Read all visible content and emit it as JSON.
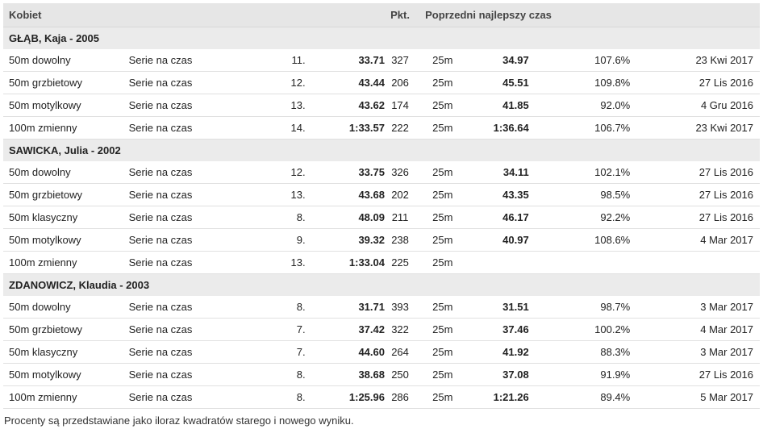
{
  "header": {
    "category": "Kobiet",
    "points_label": "Pkt.",
    "prev_best_label": "Poprzedni najlepszy czas"
  },
  "athletes": [
    {
      "name": "GŁĄB, Kaja - 2005",
      "events": [
        {
          "event": "50m dowolny",
          "round": "Serie na czas",
          "place": "11.",
          "time": "33.71",
          "points": "327",
          "course": "25m",
          "prev_time": "34.97",
          "pct": "107.6%",
          "date": "23 Kwi 2017"
        },
        {
          "event": "50m grzbietowy",
          "round": "Serie na czas",
          "place": "12.",
          "time": "43.44",
          "points": "206",
          "course": "25m",
          "prev_time": "45.51",
          "pct": "109.8%",
          "date": "27 Lis 2016"
        },
        {
          "event": "50m motylkowy",
          "round": "Serie na czas",
          "place": "13.",
          "time": "43.62",
          "points": "174",
          "course": "25m",
          "prev_time": "41.85",
          "pct": "92.0%",
          "date": "4 Gru 2016"
        },
        {
          "event": "100m zmienny",
          "round": "Serie na czas",
          "place": "14.",
          "time": "1:33.57",
          "points": "222",
          "course": "25m",
          "prev_time": "1:36.64",
          "pct": "106.7%",
          "date": "23 Kwi 2017"
        }
      ]
    },
    {
      "name": "SAWICKA, Julia - 2002",
      "events": [
        {
          "event": "50m dowolny",
          "round": "Serie na czas",
          "place": "12.",
          "time": "33.75",
          "points": "326",
          "course": "25m",
          "prev_time": "34.11",
          "pct": "102.1%",
          "date": "27 Lis 2016"
        },
        {
          "event": "50m grzbietowy",
          "round": "Serie na czas",
          "place": "13.",
          "time": "43.68",
          "points": "202",
          "course": "25m",
          "prev_time": "43.35",
          "pct": "98.5%",
          "date": "27 Lis 2016"
        },
        {
          "event": "50m klasyczny",
          "round": "Serie na czas",
          "place": "8.",
          "time": "48.09",
          "points": "211",
          "course": "25m",
          "prev_time": "46.17",
          "pct": "92.2%",
          "date": "27 Lis 2016"
        },
        {
          "event": "50m motylkowy",
          "round": "Serie na czas",
          "place": "9.",
          "time": "39.32",
          "points": "238",
          "course": "25m",
          "prev_time": "40.97",
          "pct": "108.6%",
          "date": "4 Mar 2017"
        },
        {
          "event": "100m zmienny",
          "round": "Serie na czas",
          "place": "13.",
          "time": "1:33.04",
          "points": "225",
          "course": "25m",
          "prev_time": "",
          "pct": "",
          "date": ""
        }
      ]
    },
    {
      "name": "ZDANOWICZ, Klaudia - 2003",
      "events": [
        {
          "event": "50m dowolny",
          "round": "Serie na czas",
          "place": "8.",
          "time": "31.71",
          "points": "393",
          "course": "25m",
          "prev_time": "31.51",
          "pct": "98.7%",
          "date": "3 Mar 2017"
        },
        {
          "event": "50m grzbietowy",
          "round": "Serie na czas",
          "place": "7.",
          "time": "37.42",
          "points": "322",
          "course": "25m",
          "prev_time": "37.46",
          "pct": "100.2%",
          "date": "4 Mar 2017"
        },
        {
          "event": "50m klasyczny",
          "round": "Serie na czas",
          "place": "7.",
          "time": "44.60",
          "points": "264",
          "course": "25m",
          "prev_time": "41.92",
          "pct": "88.3%",
          "date": "3 Mar 2017"
        },
        {
          "event": "50m motylkowy",
          "round": "Serie na czas",
          "place": "8.",
          "time": "38.68",
          "points": "250",
          "course": "25m",
          "prev_time": "37.08",
          "pct": "91.9%",
          "date": "27 Lis 2016"
        },
        {
          "event": "100m zmienny",
          "round": "Serie na czas",
          "place": "8.",
          "time": "1:25.96",
          "points": "286",
          "course": "25m",
          "prev_time": "1:21.26",
          "pct": "89.4%",
          "date": "5 Mar 2017"
        }
      ]
    }
  ],
  "footnote": "Procenty są przedstawiane jako iloraz kwadratów starego i nowego wyniku."
}
